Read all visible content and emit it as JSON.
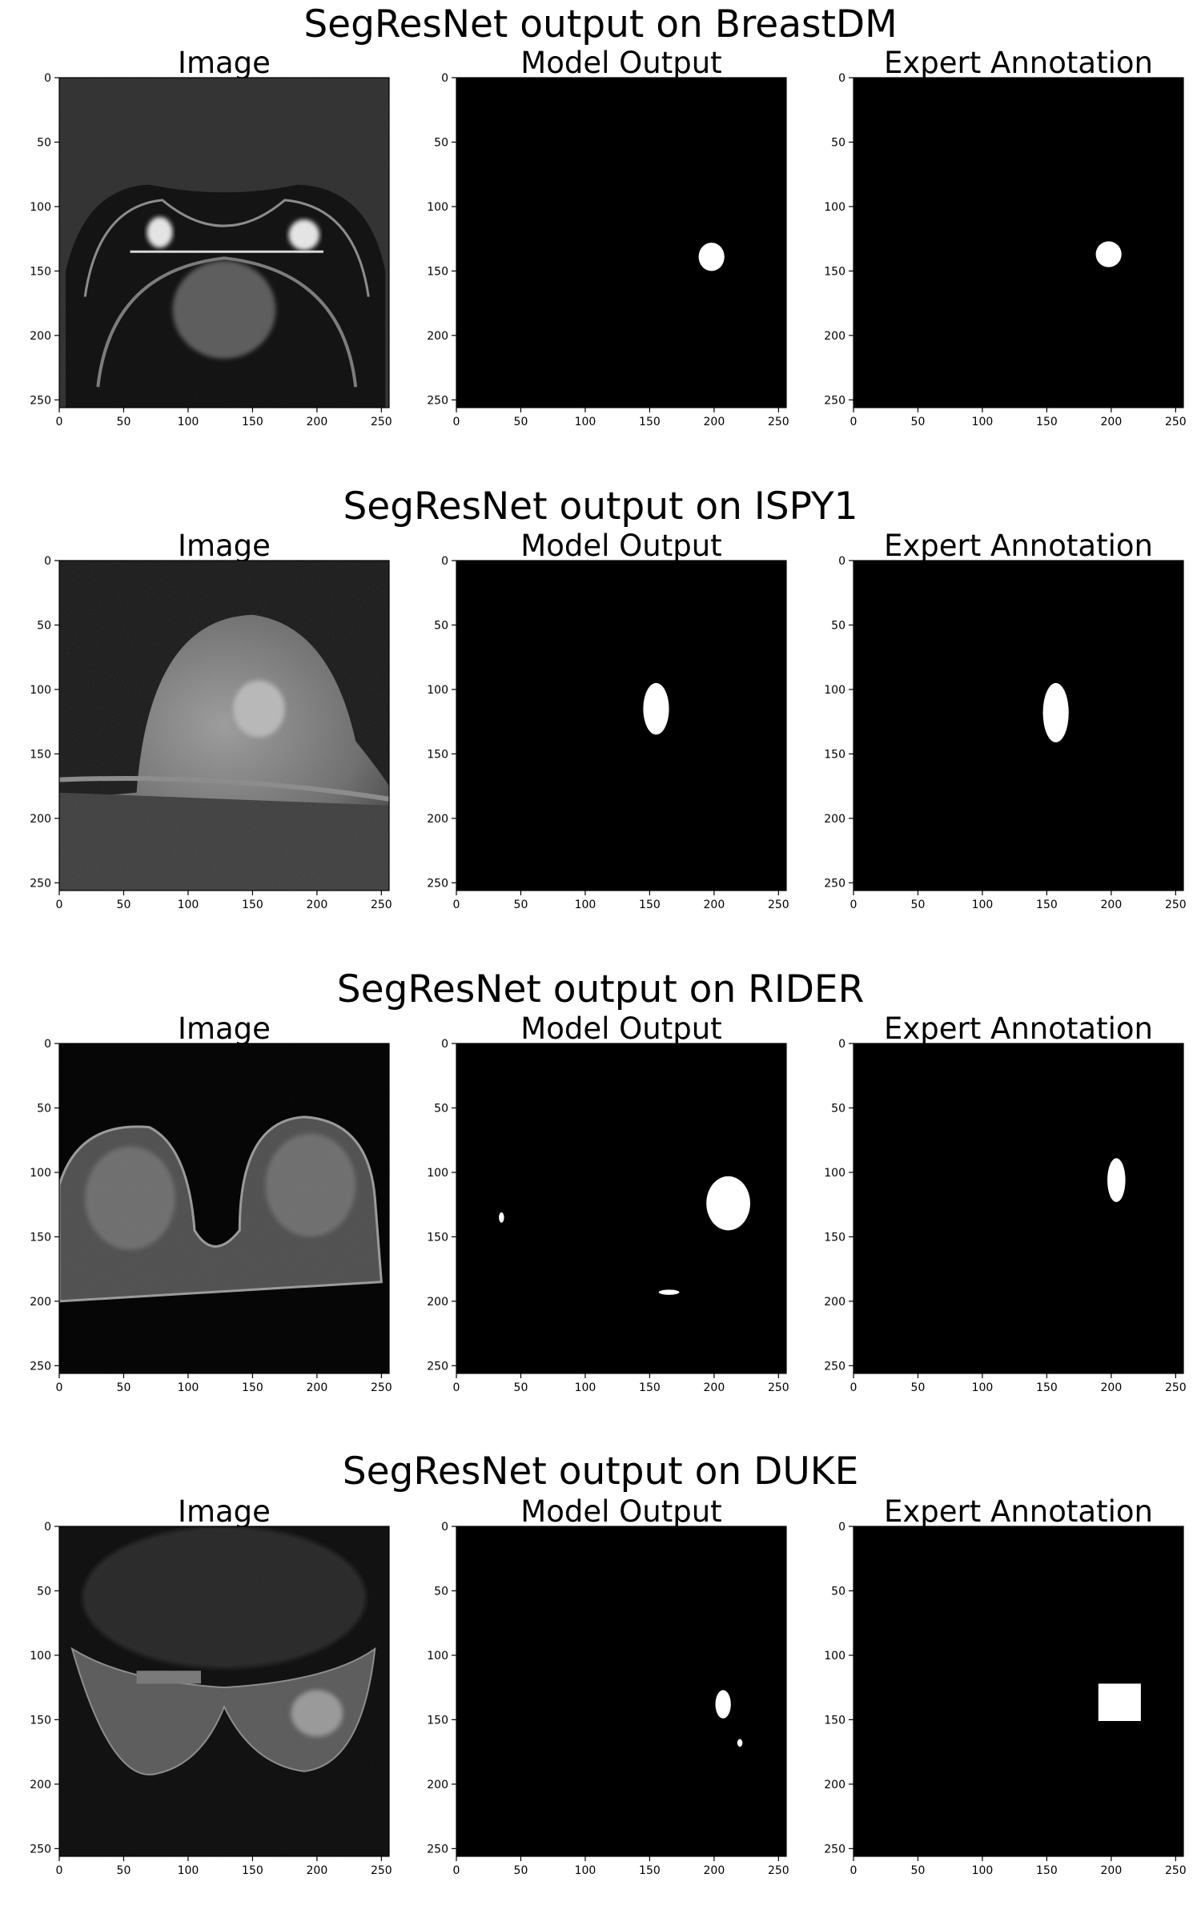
{
  "figure": {
    "rows": [
      {
        "title": "SegResNet output on BreastDM",
        "panels": [
          {
            "title": "Image",
            "kind": "breastdm-image"
          },
          {
            "title": "Model Output",
            "kind": "mask",
            "blobs": [
              [
                198,
                139,
                10,
                11
              ]
            ]
          },
          {
            "title": "Expert Annotation",
            "kind": "mask",
            "blobs": [
              [
                198,
                137,
                10,
                10
              ]
            ]
          }
        ]
      },
      {
        "title": "SegResNet output on ISPY1",
        "panels": [
          {
            "title": "Image",
            "kind": "ispy1-image"
          },
          {
            "title": "Model Output",
            "kind": "mask",
            "blobs": [
              [
                155,
                115,
                10,
                20
              ]
            ]
          },
          {
            "title": "Expert Annotation",
            "kind": "mask",
            "blobs": [
              [
                157,
                118,
                10,
                23
              ]
            ]
          }
        ]
      },
      {
        "title": "SegResNet output on RIDER",
        "panels": [
          {
            "title": "Image",
            "kind": "rider-image"
          },
          {
            "title": "Model Output",
            "kind": "mask",
            "blobs": [
              [
                211,
                124,
                17,
                21
              ],
              [
                35,
                135,
                2,
                4
              ],
              [
                165,
                193,
                8,
                2
              ]
            ]
          },
          {
            "title": "Expert Annotation",
            "kind": "mask",
            "blobs": [
              [
                204,
                106,
                7,
                17
              ]
            ]
          }
        ]
      },
      {
        "title": "SegResNet output on DUKE",
        "panels": [
          {
            "title": "Image",
            "kind": "duke-image"
          },
          {
            "title": "Model Output",
            "kind": "mask",
            "blobs": [
              [
                207,
                138,
                6,
                11
              ],
              [
                220,
                168,
                2,
                3
              ]
            ]
          },
          {
            "title": "Expert Annotation",
            "kind": "mask-rect",
            "rect": [
              190,
              122,
              223,
              151
            ]
          }
        ]
      }
    ],
    "axis": {
      "ticks": [
        0,
        50,
        100,
        150,
        200,
        250
      ],
      "xlim": [
        0,
        256
      ],
      "ylim": [
        256,
        0
      ]
    }
  }
}
